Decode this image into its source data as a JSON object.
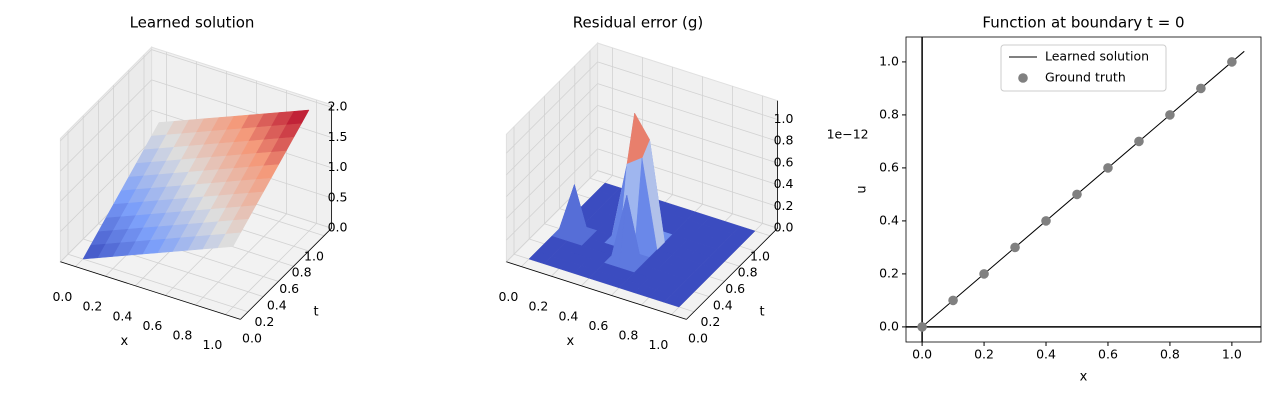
{
  "chart_data": [
    {
      "type": "surface3d",
      "title": "Learned solution",
      "xlabel": "x",
      "ylabel": "t",
      "colormap": "coolwarm",
      "x": [
        0,
        0.1,
        0.2,
        0.3,
        0.4,
        0.5,
        0.6,
        0.7,
        0.8,
        0.9,
        1
      ],
      "y": [
        0,
        0.1,
        0.2,
        0.3,
        0.4,
        0.5,
        0.6,
        0.7,
        0.8,
        0.9,
        1
      ],
      "z": [
        [
          0,
          0.1,
          0.2,
          0.3,
          0.4,
          0.5,
          0.6,
          0.7,
          0.8,
          0.9,
          1.0
        ],
        [
          0.1,
          0.2,
          0.3,
          0.4,
          0.5,
          0.6,
          0.7,
          0.8,
          0.9,
          1.0,
          1.1
        ],
        [
          0.2,
          0.3,
          0.4,
          0.5,
          0.6,
          0.7,
          0.8,
          0.9,
          1.0,
          1.1,
          1.2
        ],
        [
          0.3,
          0.4,
          0.5,
          0.6,
          0.7,
          0.8,
          0.9,
          1.0,
          1.1,
          1.2,
          1.3
        ],
        [
          0.4,
          0.5,
          0.6,
          0.7,
          0.8,
          0.9,
          1.0,
          1.1,
          1.2,
          1.3,
          1.4
        ],
        [
          0.5,
          0.6,
          0.7,
          0.8,
          0.9,
          1.0,
          1.1,
          1.2,
          1.3,
          1.4,
          1.5
        ],
        [
          0.6,
          0.7,
          0.8,
          0.9,
          1.0,
          1.1,
          1.2,
          1.3,
          1.4,
          1.5,
          1.6
        ],
        [
          0.7,
          0.8,
          0.9,
          1.0,
          1.1,
          1.2,
          1.3,
          1.4,
          1.5,
          1.6,
          1.7
        ],
        [
          0.8,
          0.9,
          1.0,
          1.1,
          1.2,
          1.3,
          1.4,
          1.5,
          1.6,
          1.7,
          1.8
        ],
        [
          0.9,
          1.0,
          1.1,
          1.2,
          1.3,
          1.4,
          1.5,
          1.6,
          1.7,
          1.8,
          1.9
        ],
        [
          1.0,
          1.1,
          1.2,
          1.3,
          1.4,
          1.5,
          1.6,
          1.7,
          1.8,
          1.9,
          2.0
        ]
      ],
      "xlim": [
        0,
        1
      ],
      "ylim": [
        0,
        1
      ],
      "zlim": [
        0,
        2
      ],
      "xticks": [
        {
          "value": 0,
          "label": "0.0"
        },
        0.2,
        0.4,
        0.6,
        0.8,
        {
          "value": 1,
          "label": "1.0"
        }
      ],
      "yticks": [
        {
          "value": 0,
          "label": "0.0"
        },
        0.2,
        0.4,
        0.6,
        0.8,
        {
          "value": 1,
          "label": "1.0"
        }
      ],
      "zticks": [
        {
          "value": 0,
          "label": "0.0"
        },
        0.5,
        {
          "value": 1,
          "label": "1.0"
        },
        1.5,
        {
          "value": 2,
          "label": "2.0"
        }
      ]
    },
    {
      "type": "surface3d",
      "title": "Residual error (g)",
      "xlabel": "x",
      "ylabel": "t",
      "colormap": "coolwarm",
      "z_offset_label": "1e−12",
      "x": [
        0,
        0.1,
        0.2,
        0.3,
        0.4,
        0.5,
        0.6,
        0.7,
        0.8,
        0.9,
        1
      ],
      "y": [
        0,
        0.1,
        0.2,
        0.3,
        0.4,
        0.5,
        0.6,
        0.7,
        0.8,
        0.9,
        1
      ],
      "z": [
        [
          0,
          0,
          0,
          0,
          0,
          0,
          0,
          0,
          0,
          0,
          0
        ],
        [
          0,
          0,
          0,
          0,
          0,
          0,
          0,
          0,
          0,
          0,
          0
        ],
        [
          0,
          0,
          0,
          0,
          0,
          0,
          0,
          0,
          0,
          0,
          0
        ],
        [
          0,
          0,
          0,
          0,
          0,
          0.6,
          0,
          0,
          0,
          0,
          0
        ],
        [
          0,
          0.45,
          0,
          0,
          0,
          0,
          0,
          0,
          0,
          0,
          0
        ],
        [
          0,
          0,
          0,
          0,
          0.7,
          0.8,
          0,
          0,
          0,
          0,
          0
        ],
        [
          0,
          0,
          0,
          0,
          1.1,
          0.9,
          0,
          0,
          0,
          0,
          0
        ],
        [
          0,
          0,
          0,
          0,
          0,
          0,
          0,
          0,
          0,
          0,
          0
        ],
        [
          0,
          0,
          0,
          0,
          0,
          0,
          0,
          0,
          0,
          0,
          0
        ],
        [
          0,
          0,
          0,
          0,
          0,
          0,
          0,
          0,
          0,
          0,
          0
        ],
        [
          0,
          0,
          0,
          0,
          0,
          0,
          0,
          0,
          0,
          0,
          0
        ]
      ],
      "xlim": [
        0,
        1
      ],
      "ylim": [
        0,
        1
      ],
      "zlim": [
        0,
        1.15
      ],
      "xticks": [
        {
          "value": 0,
          "label": "0.0"
        },
        0.2,
        0.4,
        0.6,
        0.8,
        {
          "value": 1,
          "label": "1.0"
        }
      ],
      "yticks": [
        {
          "value": 0,
          "label": "0.0"
        },
        0.2,
        0.4,
        0.6,
        0.8,
        {
          "value": 1,
          "label": "1.0"
        }
      ],
      "zticks": [
        {
          "value": 0,
          "label": "0.0"
        },
        0.2,
        0.4,
        0.6,
        0.8,
        {
          "value": 1,
          "label": "1.0"
        }
      ]
    },
    {
      "type": "line",
      "title": "Function at boundary t = 0",
      "xlabel": "x",
      "ylabel": "u",
      "series": [
        {
          "name": "Learned solution",
          "mark": "line",
          "color": "#000000",
          "x": [
            0,
            1.04
          ],
          "values": [
            0,
            1.04
          ]
        },
        {
          "name": "Ground truth",
          "mark": "scatter",
          "color": "#808080",
          "x": [
            0,
            0.1,
            0.2,
            0.3,
            0.4,
            0.5,
            0.6,
            0.7,
            0.8,
            0.9,
            1
          ],
          "values": [
            0,
            0.1,
            0.2,
            0.3,
            0.4,
            0.5,
            0.6,
            0.7,
            0.8,
            0.9,
            1
          ]
        }
      ],
      "hlines": [
        0
      ],
      "vlines": [
        0
      ],
      "xlim": [
        -0.052,
        1.094
      ],
      "ylim": [
        -0.057,
        1.094
      ],
      "xticks": [
        {
          "value": 0,
          "label": "0.0"
        },
        0.2,
        0.4,
        0.6,
        0.8,
        {
          "value": 1,
          "label": "1.0"
        }
      ],
      "yticks": [
        {
          "value": 0,
          "label": "0.0"
        },
        0.2,
        0.4,
        0.6,
        0.8,
        {
          "value": 1,
          "label": "1.0"
        }
      ],
      "legend": "upper center"
    }
  ]
}
